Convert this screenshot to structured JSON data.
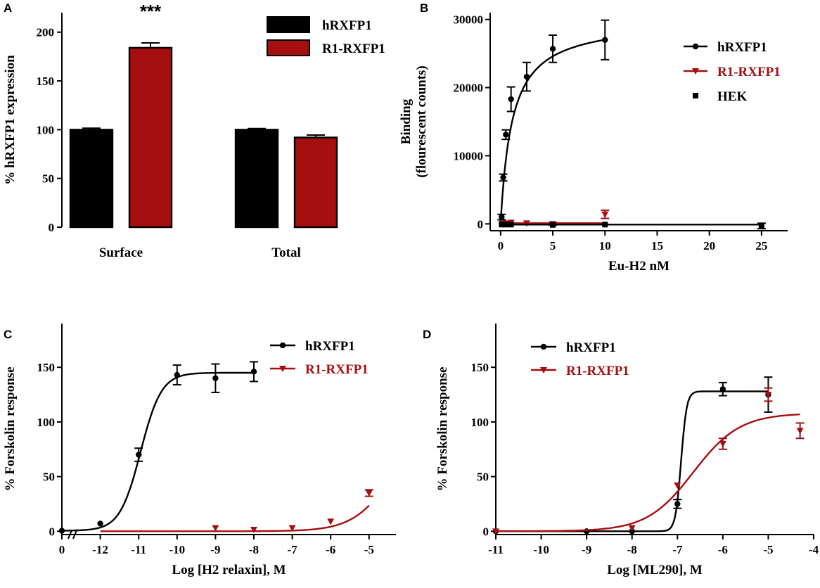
{
  "colors": {
    "black": "#000000",
    "red": "#a50f0f"
  },
  "chart_data": [
    {
      "panel": "A",
      "type": "bar",
      "title": "",
      "xlabel": "",
      "ylabel": "% hRXFP1 expression",
      "ylim": [
        0,
        220
      ],
      "yticks": [
        0,
        50,
        100,
        150,
        200
      ],
      "categories": [
        "Surface",
        "Total"
      ],
      "series": [
        {
          "name": "hRXFP1",
          "color": "black",
          "values": [
            100,
            100
          ],
          "errors": [
            1.5,
            1.2
          ]
        },
        {
          "name": "R1-RXFP1",
          "color": "red",
          "values": [
            184,
            92
          ],
          "errors": [
            5,
            2.5
          ]
        }
      ],
      "annotations": [
        {
          "text": "***",
          "category": "Surface",
          "series": "R1-RXFP1"
        }
      ],
      "legend": "top-right"
    },
    {
      "panel": "B",
      "type": "line",
      "title": "",
      "xlabel": "Eu-H2 nM",
      "ylabel": [
        "Binding",
        "(flourescent counts)"
      ],
      "xlim": [
        -1,
        27.5
      ],
      "ylim": [
        -1000,
        31000
      ],
      "xticks": [
        0,
        5,
        10,
        15,
        20,
        25
      ],
      "yticks": [
        0,
        10000,
        20000,
        30000
      ],
      "series": [
        {
          "name": "hRXFP1",
          "color": "black",
          "marker": "circle",
          "fit": {
            "kind": "saturation",
            "bmax": 30000,
            "kd": 1.1,
            "xmax": 10
          },
          "points": [
            [
              0.1,
              1000,
              400
            ],
            [
              0.25,
              6800,
              500
            ],
            [
              0.5,
              13100,
              700
            ],
            [
              1,
              18300,
              1800
            ],
            [
              2.5,
              21600,
              2100
            ],
            [
              5,
              25700,
              2000
            ],
            [
              10,
              27000,
              2900
            ]
          ]
        },
        {
          "name": "R1-RXFP1",
          "color": "red",
          "marker": "triangle-down",
          "fit": {
            "kind": "flat",
            "y": 100,
            "xmax": 10
          },
          "points": [
            [
              0.1,
              0,
              0
            ],
            [
              0.5,
              100,
              0
            ],
            [
              1,
              200,
              0
            ],
            [
              2.5,
              100,
              0
            ],
            [
              5,
              0,
              200
            ],
            [
              10,
              1400,
              600
            ]
          ]
        },
        {
          "name": "HEK",
          "color": "black",
          "marker": "square",
          "fit": {
            "kind": "flat",
            "y": -100,
            "xmax": 25
          },
          "points": [
            [
              0.1,
              -100,
              0
            ],
            [
              0.5,
              -100,
              0
            ],
            [
              1,
              -100,
              0
            ],
            [
              5,
              -150,
              0
            ],
            [
              10,
              -100,
              0
            ],
            [
              25,
              -300,
              400
            ]
          ]
        }
      ],
      "legend": "right"
    },
    {
      "panel": "C",
      "type": "line",
      "title": "",
      "xlabel": "Log [H2 relaxin], M",
      "ylabel": "% Forskolin response",
      "xlim": [
        -13,
        -4.3
      ],
      "ylim": [
        -3,
        190
      ],
      "xticks": [
        -12,
        -11,
        -10,
        -9,
        -8,
        -7,
        -6,
        -5
      ],
      "xtick_labels": [
        "-12",
        "-11",
        "-10",
        "-9",
        "-8",
        "-7",
        "-6",
        "-5"
      ],
      "zero_tick": {
        "pos": -13,
        "label": "0"
      },
      "yticks": [
        0,
        50,
        100,
        150
      ],
      "series": [
        {
          "name": "hRXFP1",
          "color": "black",
          "marker": "circle",
          "fit": {
            "kind": "sigmoid",
            "bottom": 0.5,
            "top": 145,
            "ec50": -10.95,
            "hill": 1.6,
            "xmin": -13,
            "xmax": -8
          },
          "points": [
            [
              -13,
              0.5,
              0
            ],
            [
              -12,
              7,
              0
            ],
            [
              -11,
              70,
              6
            ],
            [
              -10,
              143,
              9
            ],
            [
              -9,
              140,
              13
            ],
            [
              -8,
              146,
              9
            ]
          ]
        },
        {
          "name": "R1-RXFP1",
          "color": "red",
          "marker": "triangle-down",
          "fit": {
            "kind": "sigmoid",
            "bottom": 0,
            "top": 100,
            "ec50": -4.4,
            "hill": 0.85,
            "xmin": -12,
            "xmax": -5
          },
          "points": [
            [
              -9,
              3,
              0
            ],
            [
              -8,
              1.5,
              0
            ],
            [
              -7,
              3,
              0
            ],
            [
              -6,
              9,
              0
            ],
            [
              -5,
              35,
              3
            ]
          ]
        }
      ],
      "legend": "top-right"
    },
    {
      "panel": "D",
      "type": "line",
      "title": "",
      "xlabel": "Log [ML290], M",
      "ylabel": "% Forskolin response",
      "xlim": [
        -11,
        -4
      ],
      "ylim": [
        -3,
        190
      ],
      "xticks": [
        -11,
        -10,
        -9,
        -8,
        -7,
        -6,
        -5,
        -4
      ],
      "xtick_labels": [
        "-11",
        "-10",
        "-9",
        "-8",
        "-7",
        "-6",
        "-5",
        "-4"
      ],
      "yticks": [
        0,
        50,
        100,
        150
      ],
      "series": [
        {
          "name": "hRXFP1",
          "color": "black",
          "marker": "circle",
          "fit": {
            "kind": "sigmoid",
            "bottom": 0,
            "top": 128,
            "ec50": -6.92,
            "hill": 7,
            "xmin": -11,
            "xmax": -5
          },
          "points": [
            [
              -11,
              0,
              0
            ],
            [
              -9,
              0,
              0
            ],
            [
              -8,
              0,
              0
            ],
            [
              -7,
              25,
              4
            ],
            [
              -6,
              130,
              6
            ],
            [
              -5,
              125,
              16
            ]
          ]
        },
        {
          "name": "R1-RXFP1",
          "color": "red",
          "marker": "triangle-down",
          "fit": {
            "kind": "sigmoid",
            "bottom": 0,
            "top": 108,
            "ec50": -6.65,
            "hill": 0.85,
            "xmin": -11,
            "xmax": -4.3
          },
          "points": [
            [
              -11,
              0,
              0
            ],
            [
              -8,
              3,
              0
            ],
            [
              -7,
              42,
              0
            ],
            [
              -6,
              80,
              5
            ],
            [
              -5,
              125,
              6
            ],
            [
              -4.3,
              92,
              7
            ]
          ]
        }
      ],
      "legend": "top-left"
    }
  ]
}
